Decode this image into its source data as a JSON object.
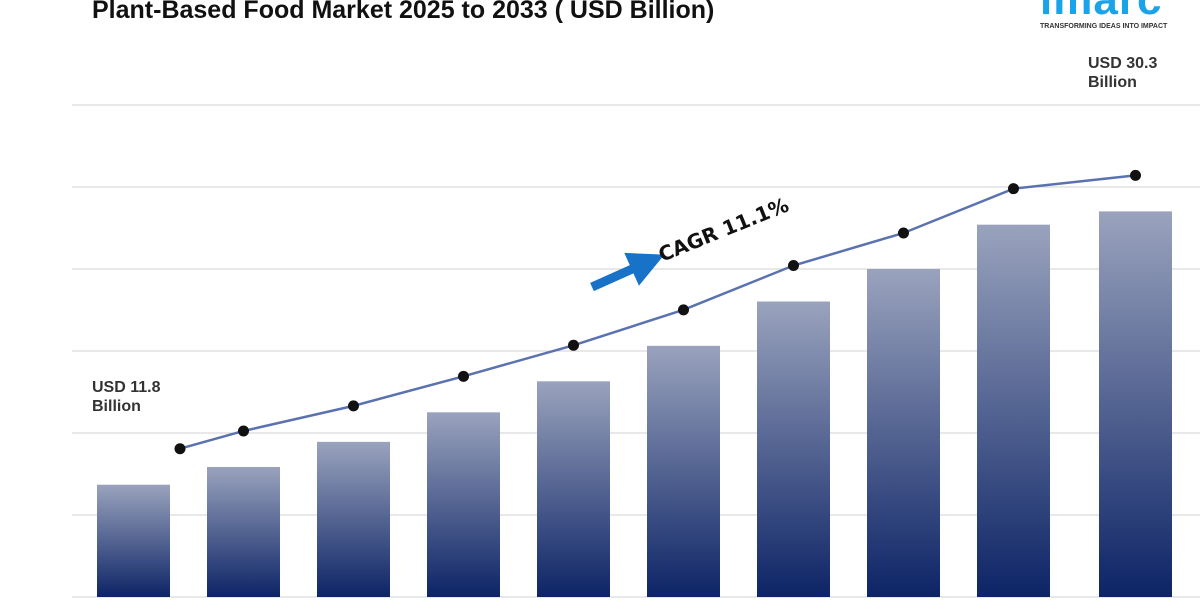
{
  "title": "Plant-Based Food Market 2025 to 2033 ( USD Billion)",
  "logo": {
    "word": "imarc",
    "tagline": "TRANSFORMING IDEAS INTO IMPACT"
  },
  "chart_data": {
    "type": "bar",
    "title": "Plant-Based Food Market 2025 to 2033 ( USD Billion)",
    "values": [
      11.8,
      13.0,
      14.7,
      16.7,
      18.8,
      21.2,
      24.2,
      26.4,
      29.4,
      30.3
    ],
    "trend_line": true,
    "annotations": {
      "start_label": [
        "USD 11.8",
        "Billion"
      ],
      "end_label": [
        "USD 30.3",
        "Billion"
      ],
      "cagr": "CAGR 11.1%"
    },
    "ylim": [
      4.2,
      37.5
    ],
    "grid": true,
    "colors": {
      "bar_top": "#9aa3bd",
      "bar_bottom": "#0d2466",
      "line": "#5a72b0",
      "marker": "#111111",
      "arrow": "#1873c8",
      "grid": "#d0d0d0"
    }
  }
}
